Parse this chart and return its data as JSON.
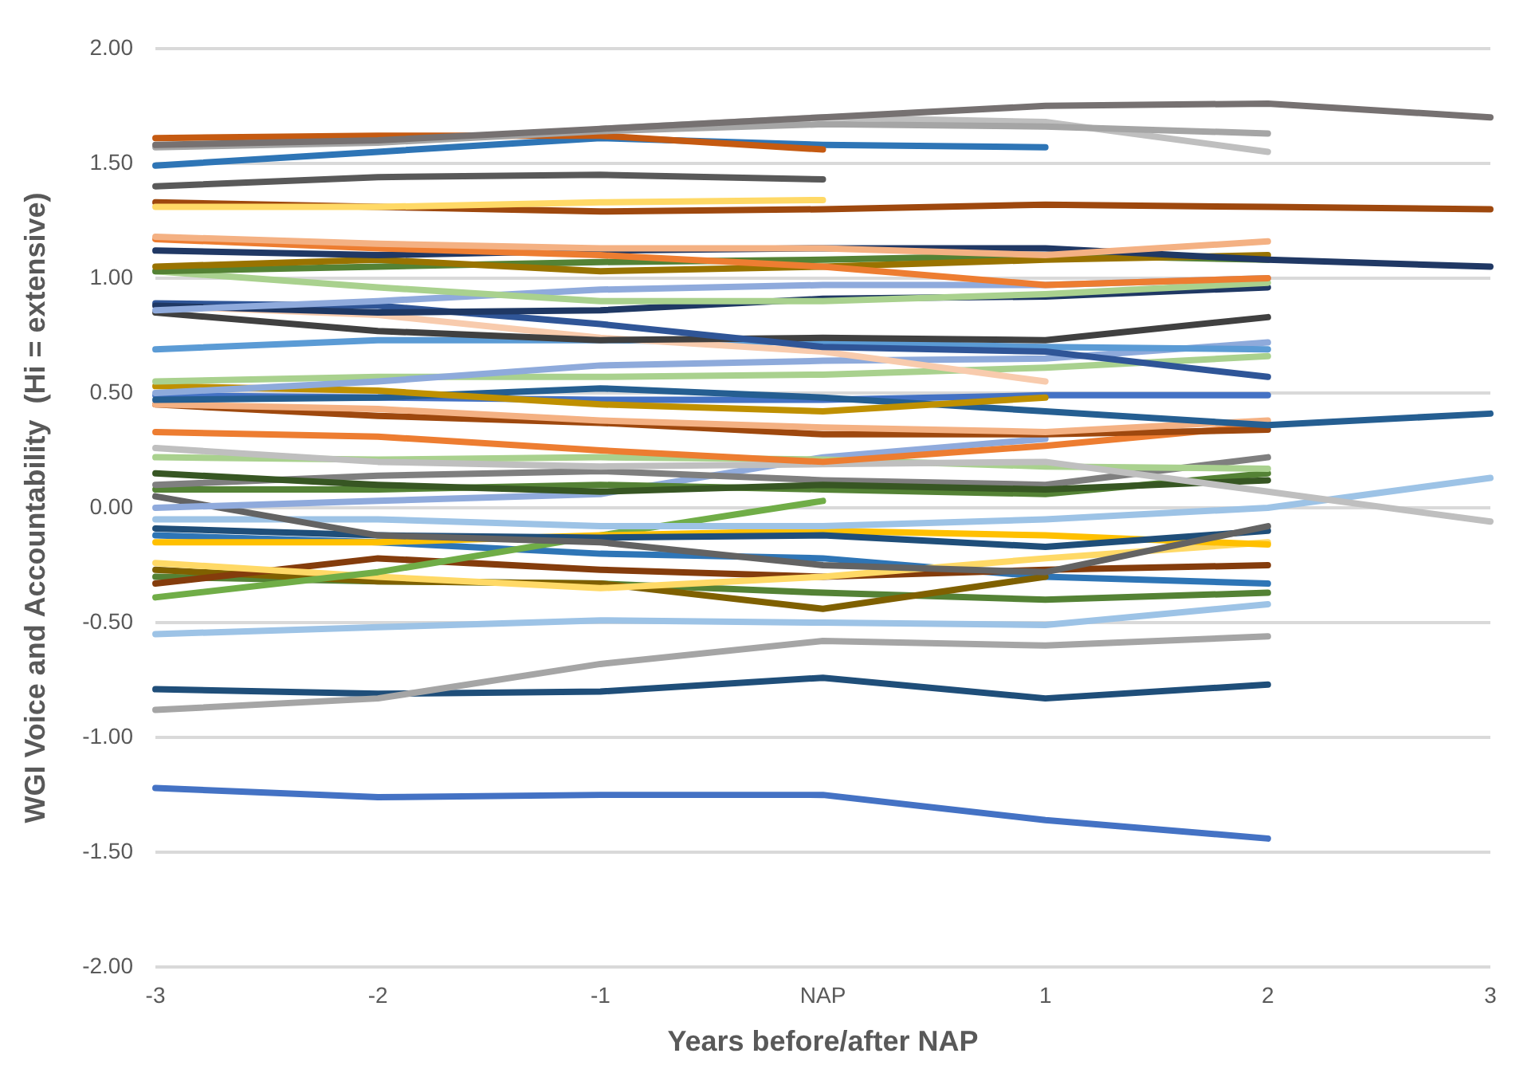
{
  "chart_data": {
    "type": "line",
    "xlabel": "Years before/after NAP",
    "ylabel": "WGI Voice and Accountability  (Hi = extensive)",
    "categories": [
      "-3",
      "-2",
      "-1",
      "NAP",
      "1",
      "2",
      "3"
    ],
    "ylim": [
      -2,
      2
    ],
    "yticks": [
      {
        "value": -2,
        "label": "-2.00"
      },
      {
        "value": -1.5,
        "label": "-1.50"
      },
      {
        "value": -1,
        "label": "-1.00"
      },
      {
        "value": -0.5,
        "label": "-0.50"
      },
      {
        "value": 0,
        "label": "0.00"
      },
      {
        "value": 0.5,
        "label": "0.50"
      },
      {
        "value": 1,
        "label": "1.00"
      },
      {
        "value": 1.5,
        "label": "1.50"
      },
      {
        "value": 2,
        "label": "2.00"
      }
    ],
    "grid": "y",
    "legend": false,
    "marker": "none",
    "line_style": "solid",
    "series": [
      {
        "color": "#767171",
        "values": [
          1.58,
          1.6,
          1.65,
          1.7,
          1.75,
          1.76,
          1.7
        ]
      },
      {
        "color": "#a5a5a5",
        "values": [
          1.57,
          1.59,
          1.64,
          1.67,
          1.66,
          1.63,
          null
        ]
      },
      {
        "color": "#bfbfbf",
        "values": [
          null,
          null,
          1.65,
          1.7,
          1.68,
          1.55,
          null
        ]
      },
      {
        "color": "#c55a11",
        "values": [
          1.61,
          1.62,
          1.62,
          1.56,
          null,
          null,
          null
        ]
      },
      {
        "color": "#2e75b6",
        "values": [
          1.49,
          1.55,
          1.61,
          1.58,
          1.57,
          null,
          null
        ]
      },
      {
        "color": "#595959",
        "values": [
          1.4,
          1.44,
          1.45,
          1.43,
          null,
          null,
          null
        ]
      },
      {
        "color": "#ffd966",
        "values": [
          1.31,
          1.31,
          1.33,
          1.34,
          null,
          null,
          null
        ]
      },
      {
        "color": "#9e480e",
        "values": [
          1.33,
          1.31,
          1.29,
          1.3,
          1.32,
          1.31,
          1.3
        ]
      },
      {
        "color": "#f4b183",
        "values": [
          1.18,
          1.15,
          1.13,
          1.13,
          1.1,
          1.16,
          null
        ]
      },
      {
        "color": "#ed7d31",
        "values": [
          1.17,
          1.13,
          1.1,
          1.05,
          0.97,
          1.0,
          null
        ]
      },
      {
        "color": "#203864",
        "values": [
          1.12,
          1.1,
          1.12,
          1.13,
          1.13,
          1.08,
          1.05
        ]
      },
      {
        "color": "#997300",
        "values": [
          1.05,
          1.08,
          1.03,
          1.05,
          1.08,
          1.1,
          null
        ]
      },
      {
        "color": "#548235",
        "values": [
          1.03,
          1.05,
          1.07,
          1.08,
          1.1,
          1.08,
          null
        ]
      },
      {
        "color": "#a9d18e",
        "values": [
          1.03,
          0.96,
          0.9,
          0.9,
          0.93,
          0.98,
          null
        ]
      },
      {
        "color": "#8faadc",
        "values": [
          0.86,
          0.9,
          0.95,
          0.97,
          0.97,
          1.0,
          null
        ]
      },
      {
        "color": "#1f3864",
        "values": [
          0.88,
          0.85,
          0.86,
          0.91,
          0.92,
          0.96,
          null
        ]
      },
      {
        "color": "#2f5597",
        "values": [
          0.89,
          0.88,
          0.8,
          0.7,
          0.68,
          0.57,
          null
        ]
      },
      {
        "color": "#404040",
        "values": [
          0.85,
          0.77,
          0.73,
          0.74,
          0.73,
          0.83,
          null
        ]
      },
      {
        "color": "#f8cbad",
        "values": [
          0.88,
          0.84,
          0.74,
          0.68,
          0.55,
          null,
          null
        ]
      },
      {
        "color": "#5b9bd5",
        "values": [
          0.69,
          0.73,
          0.73,
          0.72,
          0.7,
          0.69,
          null
        ]
      },
      {
        "color": "#8eaadb",
        "values": [
          0.5,
          0.55,
          0.62,
          0.64,
          0.65,
          0.72,
          null
        ]
      },
      {
        "color": "#a9d18e",
        "values": [
          0.55,
          0.57,
          0.57,
          0.58,
          0.61,
          0.66,
          null
        ]
      },
      {
        "color": "#bf9000",
        "values": [
          0.53,
          0.51,
          0.45,
          0.42,
          0.48,
          null,
          null
        ]
      },
      {
        "color": "#255e91",
        "values": [
          0.47,
          0.48,
          0.52,
          0.48,
          0.42,
          0.36,
          0.41
        ]
      },
      {
        "color": "#4472c4",
        "values": [
          0.49,
          0.48,
          0.47,
          0.47,
          0.49,
          0.49,
          null
        ]
      },
      {
        "color": "#f4b183",
        "values": [
          0.45,
          0.43,
          0.38,
          0.35,
          0.33,
          0.38,
          null
        ]
      },
      {
        "color": "#9e480e",
        "values": [
          0.45,
          0.4,
          0.37,
          0.32,
          0.32,
          0.34,
          null
        ]
      },
      {
        "color": "#ed7d31",
        "values": [
          0.33,
          0.31,
          0.25,
          0.2,
          0.27,
          0.36,
          null
        ]
      },
      {
        "color": "#bfbfbf",
        "values": [
          0.26,
          0.2,
          0.18,
          0.19,
          0.2,
          0.07,
          -0.06
        ]
      },
      {
        "color": "#a9d18e",
        "values": [
          0.22,
          0.21,
          0.22,
          0.21,
          0.18,
          0.17,
          null
        ]
      },
      {
        "color": "#375623",
        "values": [
          0.15,
          0.1,
          0.07,
          0.1,
          0.08,
          0.12,
          null
        ]
      },
      {
        "color": "#7f7f7f",
        "values": [
          0.1,
          0.14,
          0.16,
          0.12,
          0.1,
          0.22,
          null
        ]
      },
      {
        "color": "#548235",
        "values": [
          0.08,
          0.08,
          0.1,
          0.08,
          0.06,
          0.15,
          null
        ]
      },
      {
        "color": "#8faadc",
        "values": [
          0.0,
          0.03,
          0.06,
          0.22,
          0.3,
          null,
          null
        ]
      },
      {
        "color": "#636363",
        "values": [
          0.05,
          -0.12,
          -0.15,
          -0.25,
          -0.28,
          -0.08,
          null
        ]
      },
      {
        "color": "#9dc3e6",
        "values": [
          -0.05,
          -0.05,
          -0.08,
          -0.08,
          -0.05,
          0.0,
          0.13
        ]
      },
      {
        "color": "#1f4e79",
        "values": [
          -0.09,
          -0.12,
          -0.13,
          -0.12,
          -0.17,
          -0.1,
          null
        ]
      },
      {
        "color": "#ffc000",
        "values": [
          -0.15,
          -0.15,
          -0.12,
          -0.1,
          -0.12,
          -0.16,
          null
        ]
      },
      {
        "color": "#70ad47",
        "values": [
          -0.39,
          -0.28,
          -0.12,
          0.03,
          null,
          null,
          null
        ]
      },
      {
        "color": "#ffd966",
        "values": [
          -0.24,
          -0.3,
          -0.35,
          -0.3,
          -0.22,
          -0.15,
          null
        ]
      },
      {
        "color": "#843c0c",
        "values": [
          -0.33,
          -0.22,
          -0.27,
          -0.3,
          -0.27,
          -0.25,
          null
        ]
      },
      {
        "color": "#7f6000",
        "values": [
          -0.27,
          -0.32,
          -0.33,
          -0.44,
          -0.3,
          null,
          null
        ]
      },
      {
        "color": "#2e75b6",
        "values": [
          -0.12,
          -0.15,
          -0.2,
          -0.22,
          -0.3,
          -0.33,
          null
        ]
      },
      {
        "color": "#548235",
        "values": [
          -0.3,
          -0.32,
          -0.33,
          -0.37,
          -0.4,
          -0.37,
          null
        ]
      },
      {
        "color": "#9dc3e6",
        "values": [
          -0.55,
          -0.52,
          -0.49,
          -0.5,
          -0.51,
          -0.42,
          null
        ]
      },
      {
        "color": "#a5a5a5",
        "values": [
          -0.88,
          -0.83,
          -0.68,
          -0.58,
          -0.6,
          -0.56,
          null
        ]
      },
      {
        "color": "#1f4e79",
        "values": [
          -0.79,
          -0.81,
          -0.8,
          -0.74,
          -0.83,
          -0.77,
          null
        ]
      },
      {
        "color": "#4472c4",
        "values": [
          -1.22,
          -1.26,
          -1.25,
          -1.25,
          -1.36,
          -1.44,
          null
        ]
      }
    ]
  }
}
